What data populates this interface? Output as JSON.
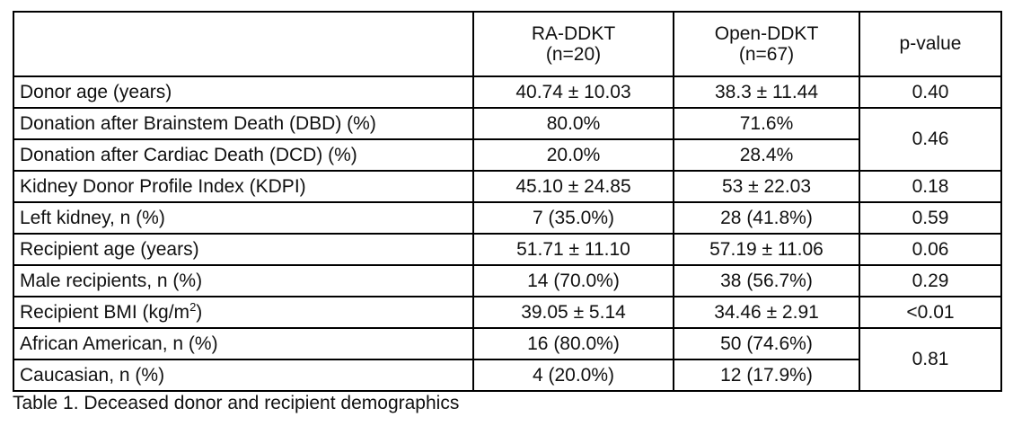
{
  "table": {
    "headers": {
      "ra_line1": "RA-DDKT",
      "ra_line2": "(n=20)",
      "open_line1": "Open-DDKT",
      "open_line2": "(n=67)",
      "pvalue": "p-value"
    },
    "rows": [
      {
        "label": "Donor age (years)",
        "ra": "40.74 ± 10.03",
        "open": "38.3 ± 11.44",
        "p": "0.40"
      },
      {
        "label": "Donation after Brainstem Death (DBD) (%)",
        "ra": "80.0%",
        "open": "71.6%",
        "p": "0.46"
      },
      {
        "label": "Donation after Cardiac Death (DCD) (%)",
        "ra": "20.0%",
        "open": "28.4%"
      },
      {
        "label": "Kidney Donor Profile Index (KDPI)",
        "ra": "45.10 ± 24.85",
        "open": "53 ± 22.03",
        "p": "0.18"
      },
      {
        "label": "Left kidney, n (%)",
        "ra": "7 (35.0%)",
        "open": "28 (41.8%)",
        "p": "0.59"
      },
      {
        "label": "Recipient age (years)",
        "ra": "51.71 ± 11.10",
        "open": "57.19 ± 11.06",
        "p": "0.06"
      },
      {
        "label": "Male recipients, n (%)",
        "ra": "14 (70.0%)",
        "open": "38 (56.7%)",
        "p": "0.29"
      },
      {
        "label": "Recipient BMI (kg/m",
        "label_sup": "2",
        "label_end": ")",
        "ra": "39.05 ± 5.14",
        "open": "34.46 ± 2.91",
        "p": "<0.01"
      },
      {
        "label": "African American, n (%)",
        "ra": "16 (80.0%)",
        "open": "50 (74.6%)",
        "p": "0.81"
      },
      {
        "label": "Caucasian, n (%)",
        "ra": "4 (20.0%)",
        "open": "12 (17.9%)"
      }
    ]
  },
  "caption": "Table 1. Deceased donor and recipient demographics"
}
